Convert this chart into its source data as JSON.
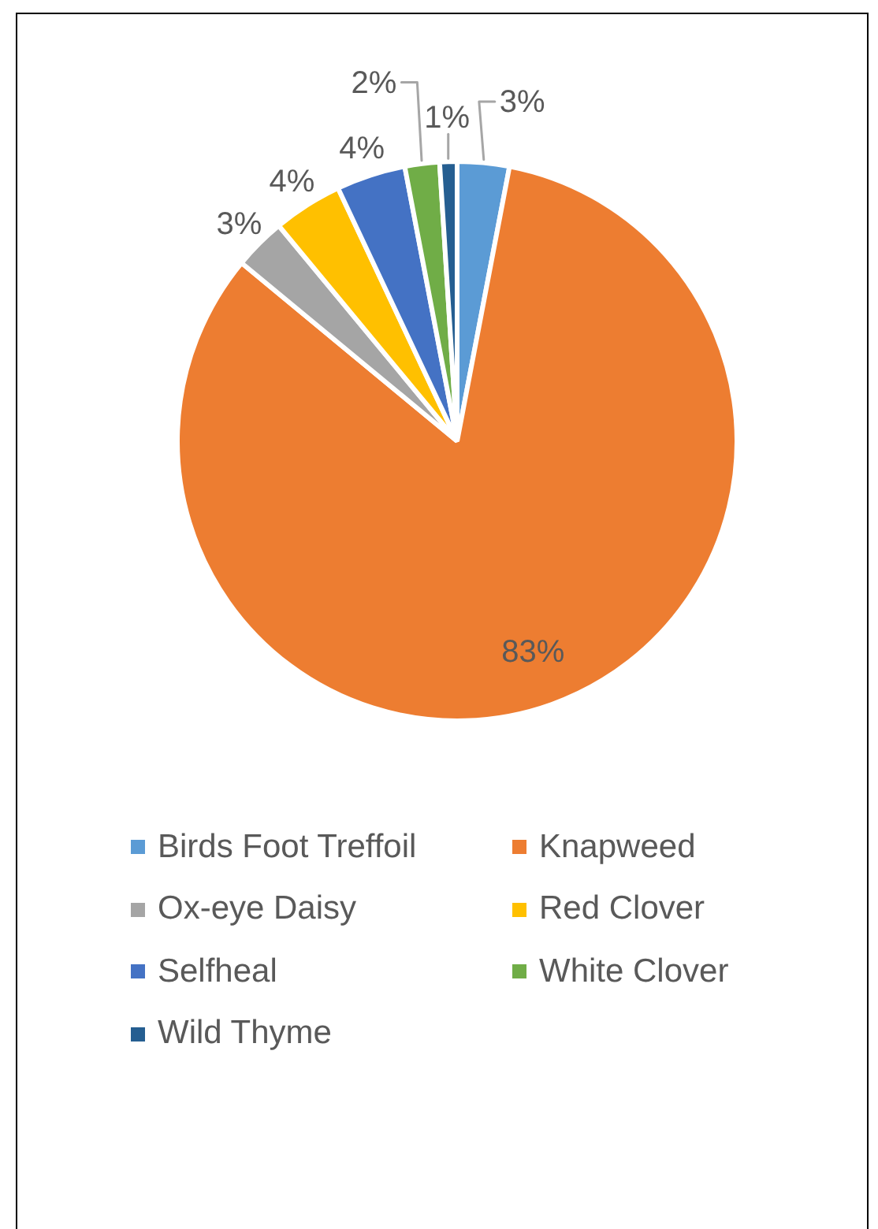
{
  "chart_data": {
    "type": "pie",
    "categories": [
      "Birds Foot Treffoil",
      "Knapweed",
      "Ox-eye Daisy",
      "Red Clover",
      "Selfheal",
      "White Clover",
      "Wild Thyme"
    ],
    "values": [
      3,
      83,
      3,
      4,
      4,
      2,
      1
    ],
    "colors": [
      "#5b9bd5",
      "#ed7d31",
      "#a5a5a5",
      "#ffc000",
      "#4472c4",
      "#70ad47",
      "#255e91"
    ],
    "value_labels": [
      "3%",
      "83%",
      "3%",
      "4%",
      "4%",
      "2%",
      "1%"
    ],
    "legend": "bottom"
  }
}
